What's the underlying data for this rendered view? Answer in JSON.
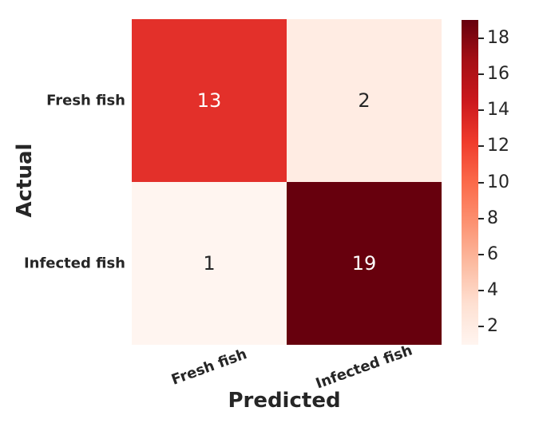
{
  "figure": {
    "background": "#ffffff",
    "text_color": "#262626"
  },
  "chart_data": {
    "type": "heatmap",
    "title": "",
    "xlabel": "Predicted",
    "ylabel": "Actual",
    "x_categories": [
      "Fresh fish",
      "Infected fish"
    ],
    "y_categories": [
      "Fresh fish",
      "Infected fish"
    ],
    "matrix": [
      [
        13,
        2
      ],
      [
        1,
        19
      ]
    ],
    "vmin": 1,
    "vmax": 19,
    "colormap": "Reds",
    "colorbar_ticks": [
      2,
      4,
      6,
      8,
      10,
      12,
      14,
      16,
      18
    ],
    "cell_colors": [
      [
        "#e3302a",
        "#ffece3"
      ],
      [
        "#fff5f0",
        "#67000d"
      ]
    ],
    "cell_text_colors": [
      [
        "#ffffff",
        "#262626"
      ],
      [
        "#262626",
        "#ffffff"
      ]
    ],
    "colorbar_gradient_bottom_to_top": [
      "#fff5f0",
      "#fee0d2",
      "#fcbba1",
      "#fc9272",
      "#fb6a4a",
      "#ef3b2c",
      "#cb181d",
      "#a50f15",
      "#67000d"
    ],
    "x_tick_rotation_deg": -20,
    "legend": "none",
    "grid": "off"
  }
}
